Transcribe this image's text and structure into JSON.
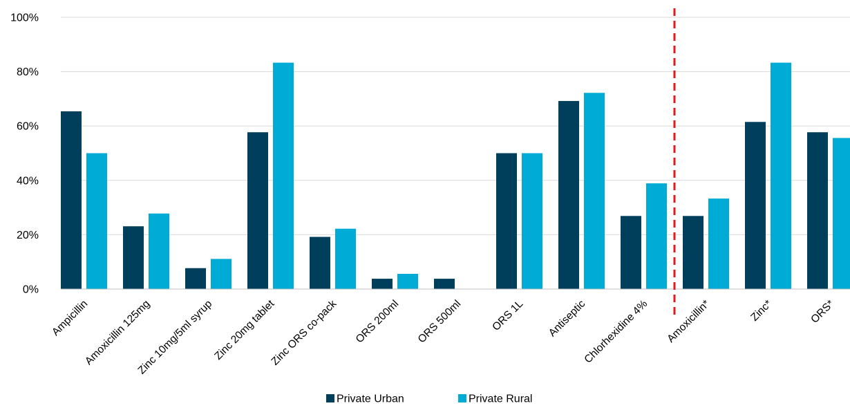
{
  "chart_data": {
    "type": "bar",
    "categories": [
      "Ampicillin",
      "Amoxicillin 125mg",
      "Zinc 10mg/5ml syrup",
      "Zinc 20mg tablet",
      "Zinc ORS co-pack",
      "ORS 200ml",
      "ORS 500ml",
      "ORS 1L",
      "Antiseptic",
      "Chlorhexidine 4%",
      "Amoxicillin*",
      "Zinc*",
      "ORS*"
    ],
    "series": [
      {
        "name": "Private Urban",
        "color": "#003f5c",
        "values": [
          65.4,
          23.1,
          7.7,
          57.7,
          19.2,
          3.8,
          3.8,
          50.0,
          69.2,
          26.9,
          26.9,
          61.5,
          57.7
        ]
      },
      {
        "name": "Private Rural",
        "color": "#00acd6",
        "values": [
          50.0,
          27.8,
          11.1,
          83.3,
          22.2,
          5.6,
          0,
          50.0,
          72.2,
          38.9,
          33.3,
          83.3,
          55.6
        ]
      }
    ],
    "yticks": [
      "0%",
      "20%",
      "40%",
      "60%",
      "80%",
      "100%"
    ],
    "ylim": [
      0,
      100
    ],
    "grid": true,
    "legend": "bottom-center",
    "divider": {
      "after_category_index": 9,
      "style": "dashed",
      "color": "#e31a1c"
    }
  }
}
